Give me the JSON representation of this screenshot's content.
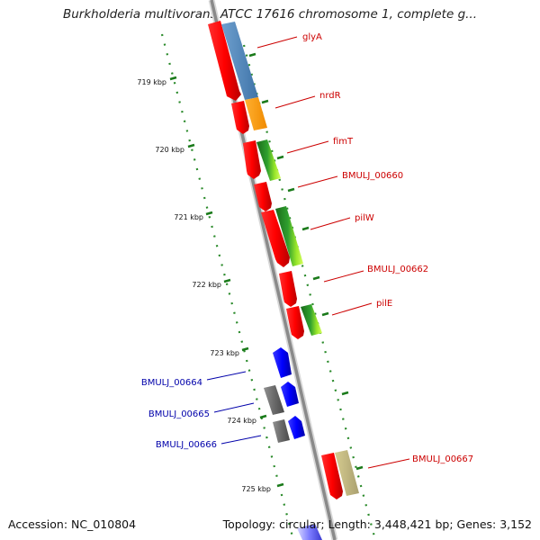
{
  "title": "Burkholderia multivorans ATCC 17616 chromosome 1, complete g...",
  "footer": {
    "accession": "Accession: NC_010804",
    "topology": "Topology: circular; Length: 3,448,421 bp; Genes: 3,152"
  },
  "kbp_ticks": [
    "719 kbp",
    "720 kbp",
    "721 kbp",
    "722 kbp",
    "723 kbp",
    "724 kbp",
    "725 kbp"
  ],
  "forward_genes": [
    {
      "name": "glyA",
      "color": "#cc0000"
    },
    {
      "name": "nrdR",
      "color": "#cc0000"
    },
    {
      "name": "fimT",
      "color": "#cc0000"
    },
    {
      "name": "BMULJ_00660",
      "color": "#cc0000"
    },
    {
      "name": "pilW",
      "color": "#cc0000"
    },
    {
      "name": "BMULJ_00662",
      "color": "#cc0000"
    },
    {
      "name": "pilE",
      "color": "#cc0000"
    },
    {
      "name": "BMULJ_00667",
      "color": "#cc0000"
    }
  ],
  "reverse_genes": [
    {
      "name": "BMULJ_00664",
      "color": "#0000aa"
    },
    {
      "name": "BMULJ_00665",
      "color": "#0000aa"
    },
    {
      "name": "BMULJ_00666",
      "color": "#0000aa"
    }
  ],
  "colors": {
    "backbone": "#8a8a8a",
    "forward_arrow": "#ff0000",
    "reverse_arrow": "#0000ff",
    "gc_green": "#1a7a1a",
    "tick_green": "#2a8a2a"
  }
}
